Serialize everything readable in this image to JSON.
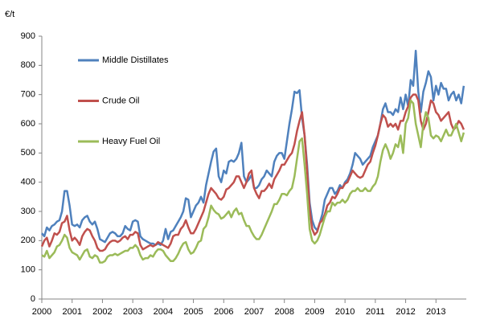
{
  "chart_data": {
    "type": "line",
    "y_label": "€/t",
    "categories": [
      "2000",
      null,
      null,
      null,
      null,
      null,
      null,
      null,
      null,
      null,
      null,
      null,
      "2001",
      null,
      null,
      null,
      null,
      null,
      null,
      null,
      null,
      null,
      null,
      null,
      "2002",
      null,
      null,
      null,
      null,
      null,
      null,
      null,
      null,
      null,
      null,
      null,
      "2003",
      null,
      null,
      null,
      null,
      null,
      null,
      null,
      null,
      null,
      null,
      null,
      "2004",
      null,
      null,
      null,
      null,
      null,
      null,
      null,
      null,
      null,
      null,
      null,
      "2005",
      null,
      null,
      null,
      null,
      null,
      null,
      null,
      null,
      null,
      null,
      null,
      "2006",
      null,
      null,
      null,
      null,
      null,
      null,
      null,
      null,
      null,
      null,
      null,
      "2007",
      null,
      null,
      null,
      null,
      null,
      null,
      null,
      null,
      null,
      null,
      null,
      "2008",
      null,
      null,
      null,
      null,
      null,
      null,
      null,
      null,
      null,
      null,
      null,
      "2009",
      null,
      null,
      null,
      null,
      null,
      null,
      null,
      null,
      null,
      null,
      null,
      "2010",
      null,
      null,
      null,
      null,
      null,
      null,
      null,
      null,
      null,
      null,
      null,
      "2011",
      null,
      null,
      null,
      null,
      null,
      null,
      null,
      null,
      null,
      null,
      null,
      "2012",
      null,
      null,
      null,
      null,
      null,
      null,
      null,
      null,
      null,
      null,
      null,
      "2013",
      null,
      null,
      null,
      null,
      null,
      null,
      null,
      null,
      null,
      null,
      null
    ],
    "series": [
      {
        "name": "Middle Distillates",
        "color": "#4f81bd",
        "values": [
          225,
          215,
          245,
          235,
          250,
          255,
          265,
          270,
          300,
          370,
          370,
          320,
          255,
          250,
          255,
          245,
          270,
          280,
          285,
          265,
          255,
          265,
          240,
          205,
          200,
          195,
          210,
          225,
          230,
          225,
          215,
          215,
          225,
          250,
          240,
          235,
          265,
          270,
          265,
          215,
          205,
          200,
          195,
          190,
          190,
          185,
          190,
          185,
          200,
          240,
          205,
          230,
          235,
          250,
          265,
          280,
          300,
          345,
          340,
          280,
          300,
          320,
          330,
          350,
          330,
          390,
          430,
          470,
          505,
          515,
          420,
          400,
          440,
          430,
          470,
          475,
          470,
          480,
          500,
          535,
          420,
          400,
          410,
          425,
          380,
          380,
          390,
          410,
          420,
          440,
          430,
          420,
          470,
          490,
          500,
          500,
          480,
          540,
          600,
          650,
          710,
          705,
          715,
          620,
          560,
          460,
          330,
          270,
          245,
          235,
          260,
          290,
          340,
          360,
          380,
          380,
          360,
          370,
          390,
          380,
          400,
          410,
          430,
          460,
          500,
          490,
          480,
          460,
          470,
          480,
          490,
          520,
          540,
          560,
          600,
          650,
          670,
          640,
          640,
          630,
          650,
          640,
          690,
          650,
          700,
          660,
          750,
          730,
          850,
          710,
          640,
          710,
          740,
          780,
          760,
          680,
          730,
          700,
          740,
          720,
          720,
          680,
          700,
          710,
          680,
          700,
          670,
          730
        ]
      },
      {
        "name": "Crude Oil",
        "color": "#c0504d",
        "values": [
          180,
          200,
          210,
          180,
          200,
          225,
          220,
          230,
          260,
          265,
          285,
          235,
          200,
          210,
          200,
          185,
          215,
          230,
          240,
          235,
          215,
          200,
          175,
          165,
          165,
          170,
          185,
          195,
          200,
          200,
          195,
          200,
          210,
          215,
          205,
          220,
          220,
          230,
          225,
          185,
          170,
          175,
          180,
          185,
          180,
          185,
          195,
          190,
          185,
          180,
          175,
          190,
          215,
          220,
          220,
          240,
          250,
          270,
          245,
          225,
          225,
          240,
          260,
          280,
          300,
          330,
          360,
          380,
          370,
          360,
          345,
          340,
          350,
          375,
          380,
          390,
          400,
          420,
          420,
          400,
          380,
          400,
          430,
          440,
          380,
          360,
          345,
          370,
          370,
          380,
          395,
          380,
          410,
          425,
          440,
          460,
          460,
          475,
          490,
          500,
          530,
          575,
          610,
          640,
          560,
          440,
          310,
          240,
          220,
          230,
          260,
          270,
          290,
          320,
          330,
          350,
          345,
          360,
          380,
          380,
          395,
          400,
          420,
          440,
          430,
          420,
          415,
          420,
          440,
          460,
          470,
          500,
          525,
          560,
          600,
          630,
          620,
          590,
          600,
          590,
          600,
          580,
          610,
          610,
          640,
          660,
          690,
          700,
          700,
          680,
          610,
          580,
          600,
          640,
          680,
          670,
          640,
          630,
          610,
          620,
          630,
          640,
          600,
          580,
          590,
          610,
          600,
          580
        ]
      },
      {
        "name": "Heavy Fuel Oil",
        "color": "#9bbb59",
        "values": [
          150,
          145,
          165,
          140,
          150,
          160,
          180,
          185,
          200,
          220,
          210,
          175,
          160,
          155,
          150,
          135,
          150,
          165,
          170,
          145,
          140,
          150,
          145,
          125,
          125,
          130,
          145,
          150,
          150,
          155,
          150,
          155,
          160,
          165,
          165,
          175,
          175,
          185,
          175,
          150,
          135,
          140,
          140,
          150,
          145,
          160,
          170,
          170,
          165,
          150,
          140,
          130,
          130,
          140,
          155,
          175,
          190,
          195,
          170,
          155,
          160,
          175,
          195,
          200,
          240,
          250,
          280,
          320,
          305,
          295,
          290,
          275,
          280,
          290,
          300,
          280,
          300,
          310,
          290,
          295,
          270,
          250,
          250,
          230,
          215,
          205,
          205,
          220,
          240,
          260,
          280,
          300,
          325,
          325,
          340,
          360,
          360,
          355,
          370,
          380,
          420,
          480,
          540,
          550,
          460,
          360,
          240,
          200,
          190,
          200,
          220,
          250,
          280,
          300,
          300,
          330,
          320,
          330,
          330,
          340,
          330,
          340,
          360,
          370,
          370,
          380,
          370,
          370,
          380,
          370,
          370,
          385,
          395,
          420,
          470,
          510,
          530,
          510,
          480,
          500,
          530,
          520,
          560,
          500,
          600,
          620,
          680,
          670,
          600,
          560,
          520,
          600,
          640,
          620,
          560,
          550,
          560,
          555,
          540,
          560,
          580,
          560,
          560,
          580,
          600,
          570,
          540,
          570
        ]
      }
    ],
    "ylim": [
      0,
      900
    ],
    "yticks": [
      0,
      100,
      200,
      300,
      400,
      500,
      600,
      700,
      800,
      900
    ],
    "grid": false,
    "legend": "upper-left"
  }
}
